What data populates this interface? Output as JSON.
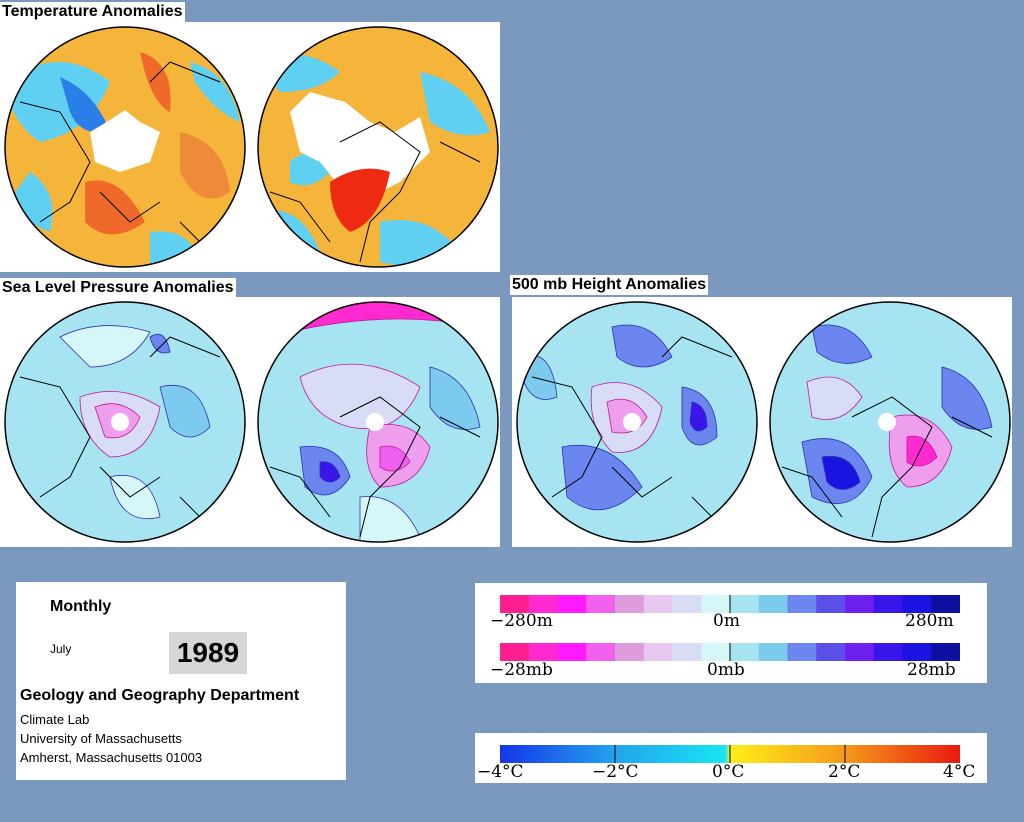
{
  "sections": {
    "temperature": {
      "title": "Temperature Anomalies"
    },
    "slp": {
      "title": "Sea Level Pressure Anomalies"
    },
    "height500": {
      "title": "500 mb Height Anomalies"
    }
  },
  "info": {
    "period": "Monthly",
    "month": "July",
    "year": "1989",
    "department": "Geology and Geography Department",
    "lines": [
      "Climate Lab",
      "University of Massachusetts",
      "Amherst, Massachusetts 01003"
    ]
  },
  "legends": {
    "height": {
      "colors": [
        "#ff1f8f",
        "#ff2ad0",
        "#ff1aff",
        "#ef60ef",
        "#dd9ddd",
        "#e7c7f0",
        "#d9dcf7",
        "#d6f7f8",
        "#a6e4f2",
        "#7ccbee",
        "#6b86ef",
        "#5a4fe6",
        "#6d20ef",
        "#3a16ea",
        "#1a14e0",
        "#0d10a0"
      ],
      "labels": [
        "−280m",
        "0m",
        "280m"
      ]
    },
    "pressure": {
      "colors": [
        "#ff1f8f",
        "#ff2ad0",
        "#ff1aff",
        "#ef60ef",
        "#dd9ddd",
        "#e7c7f0",
        "#d9dcf7",
        "#d6f7f8",
        "#a6e4f2",
        "#7ccbee",
        "#6b86ef",
        "#5a4fe6",
        "#6d20ef",
        "#3a16ea",
        "#1a14e0",
        "#0d10a0"
      ],
      "labels": [
        "−28mb",
        "0mb",
        "28mb"
      ]
    },
    "temperature": {
      "labels": [
        "−4°C",
        "−2°C",
        "0°C",
        "2°C",
        "4°C"
      ]
    }
  }
}
